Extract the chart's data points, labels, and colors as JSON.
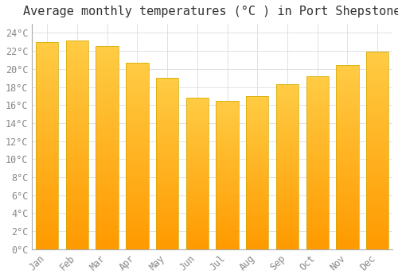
{
  "title": "Average monthly temperatures (°C ) in Port Shepstone",
  "months": [
    "Jan",
    "Feb",
    "Mar",
    "Apr",
    "May",
    "Jun",
    "Jul",
    "Aug",
    "Sep",
    "Oct",
    "Nov",
    "Dec"
  ],
  "values": [
    23.0,
    23.2,
    22.5,
    20.7,
    19.0,
    16.8,
    16.5,
    17.0,
    18.3,
    19.2,
    20.4,
    21.9
  ],
  "bar_color_top": "#FFCC44",
  "bar_color_bottom": "#FF9900",
  "bar_edge_color": "#CCAA00",
  "background_color": "#FFFFFF",
  "grid_color": "#DDDDDD",
  "ylim": [
    0,
    25
  ],
  "ytick_step": 2,
  "title_fontsize": 11,
  "tick_fontsize": 8.5,
  "tick_color": "#888888",
  "font_family": "monospace",
  "bar_width": 0.75
}
